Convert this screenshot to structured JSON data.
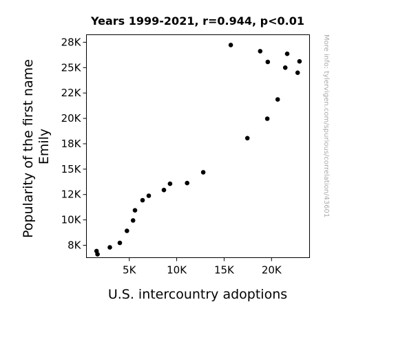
{
  "chart_data": {
    "type": "scatter",
    "title": "Years 1999-2021, r=0.944, p<0.01",
    "xlabel": "U.S. intercountry adoptions",
    "ylabel_lines": [
      "Popularity of the first name",
      "Emily"
    ],
    "watermark": "More info: tylervigen.com/spurious/correlation/43601",
    "xlim": [
      480,
      24010
    ],
    "ylim": [
      6280,
      28240
    ],
    "xticks": [
      {
        "value": 5000,
        "label": "5K"
      },
      {
        "value": 10000,
        "label": "10K"
      },
      {
        "value": 15000,
        "label": "15K"
      },
      {
        "value": 20000,
        "label": "20K"
      }
    ],
    "yticks": [
      {
        "value": 7500,
        "label": "8K"
      },
      {
        "value": 10000,
        "label": "10K"
      },
      {
        "value": 12500,
        "label": "12K"
      },
      {
        "value": 15000,
        "label": "15K"
      },
      {
        "value": 17500,
        "label": "18K"
      },
      {
        "value": 20000,
        "label": "20K"
      },
      {
        "value": 22500,
        "label": "22K"
      },
      {
        "value": 25000,
        "label": "25K"
      },
      {
        "value": 27500,
        "label": "28K"
      }
    ],
    "marker_color": "#000000",
    "points": [
      {
        "x": 1550,
        "y": 6930
      },
      {
        "x": 1650,
        "y": 6610
      },
      {
        "x": 2950,
        "y": 7300
      },
      {
        "x": 4000,
        "y": 7740
      },
      {
        "x": 4750,
        "y": 8920
      },
      {
        "x": 5400,
        "y": 9950
      },
      {
        "x": 5600,
        "y": 10940
      },
      {
        "x": 6400,
        "y": 11940
      },
      {
        "x": 7050,
        "y": 12380
      },
      {
        "x": 8650,
        "y": 12940
      },
      {
        "x": 9300,
        "y": 13560
      },
      {
        "x": 11100,
        "y": 13630
      },
      {
        "x": 12800,
        "y": 14690
      },
      {
        "x": 15700,
        "y": 27230
      },
      {
        "x": 17450,
        "y": 18050
      },
      {
        "x": 18800,
        "y": 26620
      },
      {
        "x": 19550,
        "y": 19970
      },
      {
        "x": 19600,
        "y": 25560
      },
      {
        "x": 20650,
        "y": 21870
      },
      {
        "x": 21450,
        "y": 25000
      },
      {
        "x": 21650,
        "y": 26360
      },
      {
        "x": 22750,
        "y": 24500
      },
      {
        "x": 22950,
        "y": 25620
      }
    ]
  }
}
